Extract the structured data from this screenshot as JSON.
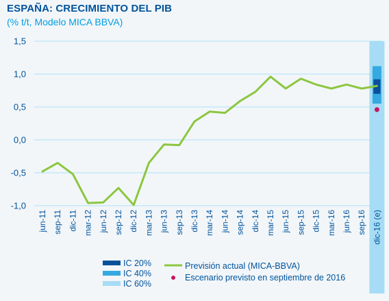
{
  "title": "ESPAÑA: CRECIMIENTO DEL PIB",
  "subtitle": "(% t/t, Modelo MICA BBVA)",
  "chart_data": {
    "type": "line",
    "categories": [
      "jun-11",
      "sep-11",
      "dic-11",
      "mar-12",
      "jun-12",
      "sep-12",
      "dic-12",
      "mar-13",
      "jun-13",
      "sep-13",
      "dic-13",
      "mar-14",
      "jun-14",
      "sep-14",
      "dic-14",
      "mar-15",
      "jun-15",
      "sep-15",
      "dic-15",
      "mar-16",
      "jun-16",
      "sep-16",
      "dic-16 (e)"
    ],
    "series": [
      {
        "name": "Previsión actual (MICA-BBVA)",
        "color": "#8cc63f",
        "values": [
          -0.48,
          -0.35,
          -0.52,
          -0.96,
          -0.95,
          -0.73,
          -0.99,
          -0.35,
          -0.07,
          -0.08,
          0.28,
          0.43,
          0.41,
          0.59,
          0.73,
          0.96,
          0.78,
          0.93,
          0.84,
          0.78,
          0.84,
          0.78,
          0.82
        ]
      }
    ],
    "september_scenario": {
      "name": "Escenario previsto en septiembre de 2016",
      "category": "dic-16 (e)",
      "value": 0.46,
      "color": "#c8155f"
    },
    "confidence_intervals": [
      {
        "name": "IC 60%",
        "low": -1.0,
        "high": 1.5,
        "color": "#a6dcf5"
      },
      {
        "name": "IC 40%",
        "low": 0.55,
        "high": 1.12,
        "color": "#35a9e1"
      },
      {
        "name": "IC 20%",
        "low": 0.7,
        "high": 0.92,
        "color": "#0a4f9a"
      }
    ],
    "yticks": [
      "1,5",
      "1,0",
      "0,5",
      "0,0",
      "-0,5",
      "-1,0"
    ],
    "ytick_values": [
      1.5,
      1.0,
      0.5,
      0.0,
      -0.5,
      -1.0
    ],
    "ylim": [
      -1.0,
      1.5
    ],
    "grid": true
  },
  "legend": {
    "ic20": "IC 20%",
    "ic40": "IC 40%",
    "ic60": "IC 60%",
    "line": "Previsión actual (MICA-BBVA)",
    "dot": "Escenario previsto en septiembre de 2016"
  }
}
